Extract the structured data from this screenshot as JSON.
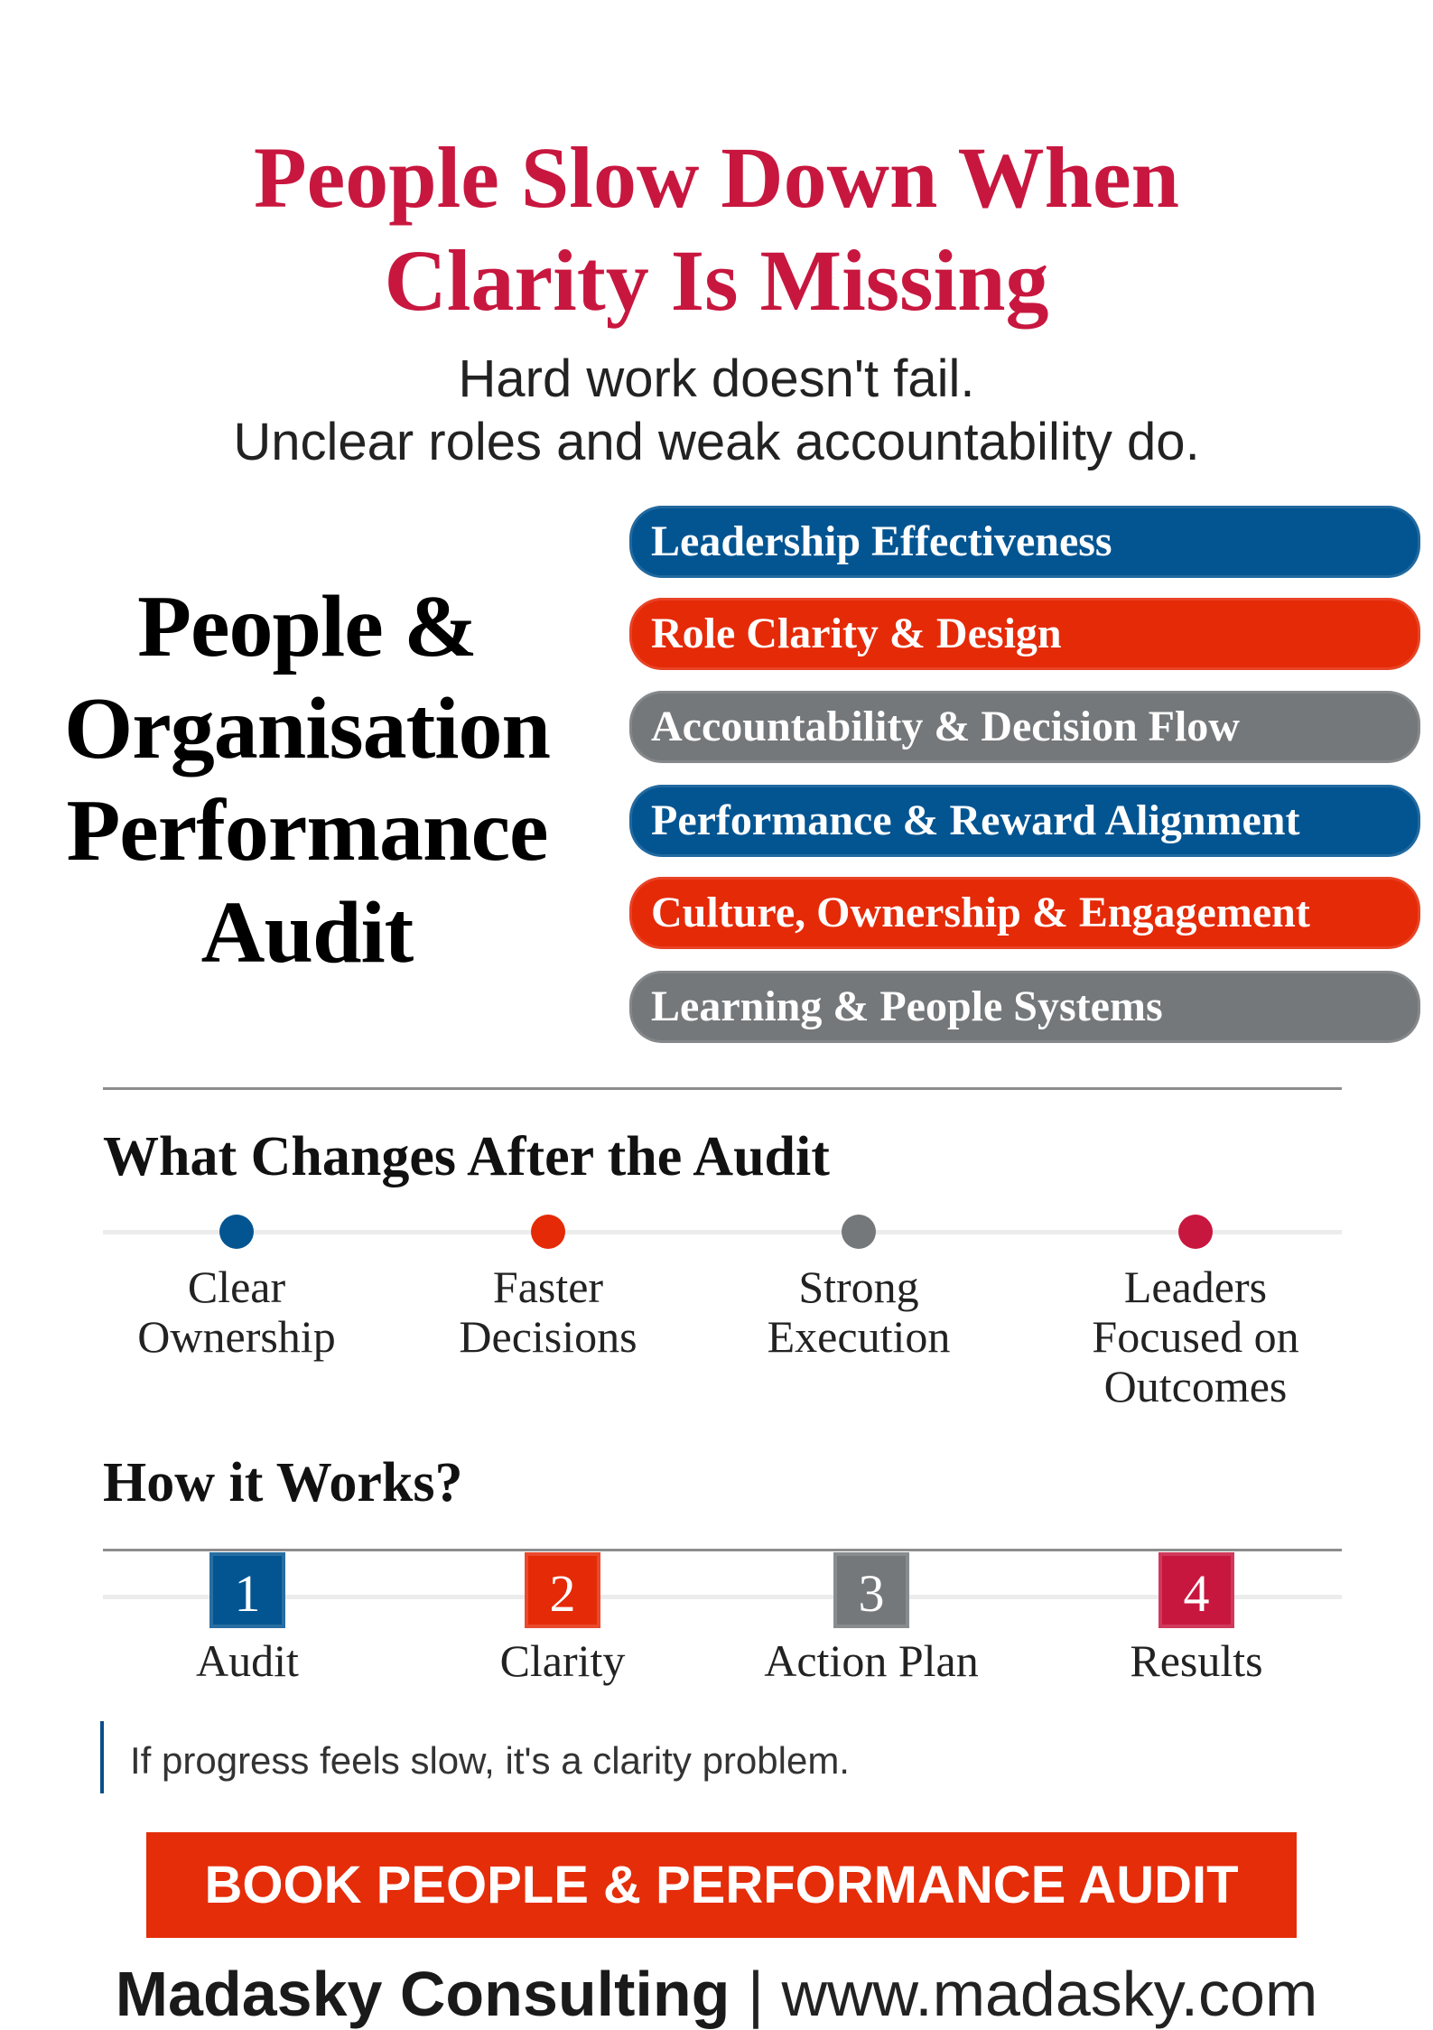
{
  "colors": {
    "blue": "#035592",
    "red": "#e52a08",
    "gray": "#75787b",
    "crimson": "#c8173f"
  },
  "header": {
    "title_lines": [
      "People Slow Down When",
      "Clarity Is Missing"
    ],
    "subtitle_lines": [
      "Hard work doesn't fail.",
      "Unclear roles and weak accountability do."
    ]
  },
  "audit_title_lines": [
    "People &",
    "Organisation",
    "Performance",
    "Audit"
  ],
  "pillars": [
    {
      "label": "Leadership Effectiveness",
      "color": "blue"
    },
    {
      "label": "Role Clarity & Design",
      "color": "red"
    },
    {
      "label": "Accountability & Decision Flow",
      "color": "gray"
    },
    {
      "label": "Performance & Reward Alignment",
      "color": "blue"
    },
    {
      "label": "Culture, Ownership & Engagement",
      "color": "red"
    },
    {
      "label": "Learning & People Systems",
      "color": "gray"
    }
  ],
  "changes": {
    "heading": "What Changes After the Audit",
    "items": [
      {
        "lines": [
          "Clear",
          "Ownership"
        ],
        "color": "blue"
      },
      {
        "lines": [
          "Faster",
          "Decisions"
        ],
        "color": "red"
      },
      {
        "lines": [
          "Strong",
          "Execution"
        ],
        "color": "gray"
      },
      {
        "lines": [
          "Leaders",
          "Focused on",
          "Outcomes"
        ],
        "color": "crimson"
      }
    ]
  },
  "how": {
    "heading": "How it Works?",
    "steps": [
      {
        "number": "1",
        "label": "Audit",
        "color": "blue"
      },
      {
        "number": "2",
        "label": "Clarity",
        "color": "red"
      },
      {
        "number": "3",
        "label": "Action Plan",
        "color": "gray"
      },
      {
        "number": "4",
        "label": "Results",
        "color": "crimson"
      }
    ]
  },
  "quote": "If progress feels slow, it's a clarity problem.",
  "cta": "BOOK PEOPLE & PERFORMANCE AUDIT",
  "footer": {
    "company": "Madasky Consulting",
    "separator": "|",
    "website": "www.madasky.com"
  }
}
